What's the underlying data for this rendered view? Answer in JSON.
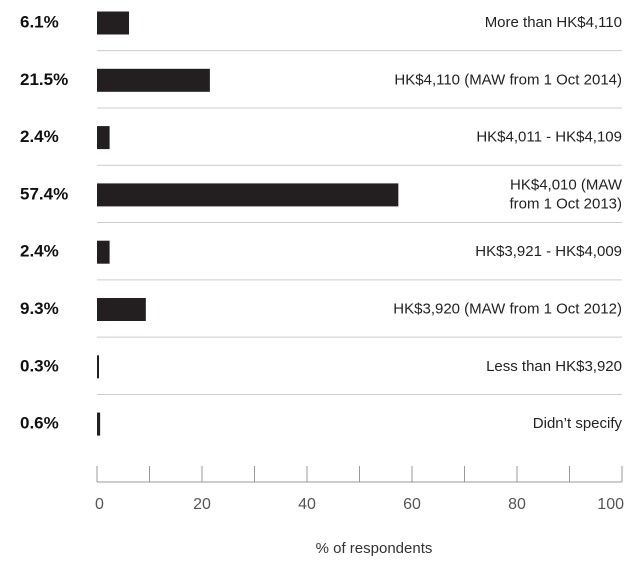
{
  "chart_data": {
    "type": "bar",
    "orientation": "horizontal",
    "categories": [
      "More than HK$4,110",
      "HK$4,110 (MAW from 1 Oct 2014)",
      "HK$4,011 - HK$4,109",
      "HK$4,010 (MAW from 1 Oct 2013)",
      "HK$3,921 - HK$4,009",
      "HK$3,920 (MAW from 1 Oct 2012)",
      "Less than HK$3,920",
      "Didn’t specify"
    ],
    "category_lines": [
      [
        "More than HK$4,110"
      ],
      [
        "HK$4,110 (MAW from 1 Oct 2014)"
      ],
      [
        "HK$4,011 - HK$4,109"
      ],
      [
        "HK$4,010 (MAW",
        "from 1 Oct 2013)"
      ],
      [
        "HK$3,921 - HK$4,009"
      ],
      [
        "HK$3,920 (MAW from 1 Oct 2012)"
      ],
      [
        "Less than HK$3,920"
      ],
      [
        "Didn’t specify"
      ]
    ],
    "values": [
      6.1,
      21.5,
      2.4,
      57.4,
      2.4,
      9.3,
      0.3,
      0.6
    ],
    "value_labels": [
      "6.1%",
      "21.5%",
      "2.4%",
      "57.4%",
      "2.4%",
      "9.3%",
      "0.3%",
      "0.6%"
    ],
    "xlim": [
      0,
      100
    ],
    "xticks": [
      0,
      20,
      40,
      60,
      80,
      100
    ],
    "xtick_labels": [
      "0",
      "20",
      "40",
      "60",
      "80",
      "100"
    ],
    "xlabel": "% of respondents",
    "ylabel": "",
    "title": "",
    "bar_color": "#231f20",
    "separator_color": "#cccccc",
    "axis_color": "#999999"
  }
}
